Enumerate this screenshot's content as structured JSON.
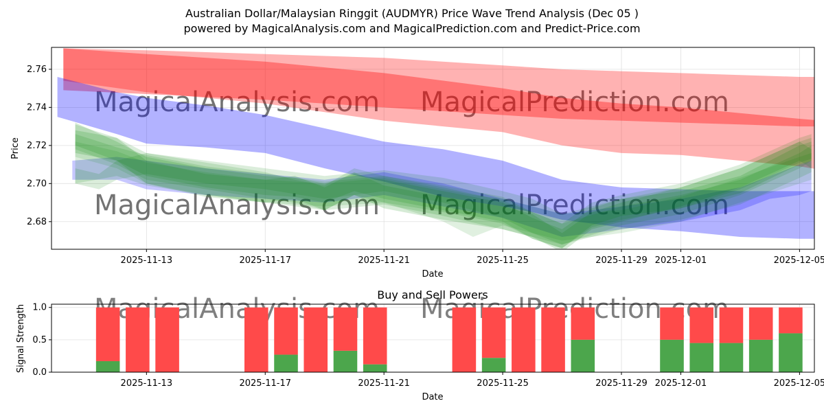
{
  "title_line1": "Australian Dollar/Malaysian Ringgit (AUDMYR) Price Wave Trend Analysis (Dec 05 )",
  "title_line2": "powered by MagicalAnalysis.com and MagicalPrediction.com and Predict-Price.com",
  "watermarks": [
    "MagicalAnalysis.com",
    "MagicalPrediction.com"
  ],
  "colors": {
    "red": "#ff0000",
    "blue": "#0000ff",
    "green": "#008000",
    "buy": "#4ca64c",
    "sell": "#ff4a4a",
    "grid": "#e0e0e0"
  },
  "chart_data": [
    {
      "type": "area",
      "title": "Australian Dollar/Malaysian Ringgit (AUDMYR) Price Wave Trend Analysis (Dec 05 )",
      "xlabel": "Date",
      "ylabel": "Price",
      "xlim_day": [
        -3.2,
        22.5
      ],
      "ylim": [
        2.6655,
        2.7715
      ],
      "x_ticks": [
        {
          "day": 0,
          "label": "2025-11-13"
        },
        {
          "day": 4,
          "label": "2025-11-17"
        },
        {
          "day": 8,
          "label": "2025-11-21"
        },
        {
          "day": 12,
          "label": "2025-11-25"
        },
        {
          "day": 16,
          "label": "2025-11-29"
        },
        {
          "day": 18,
          "label": "2025-12-01"
        },
        {
          "day": 22,
          "label": "2025-12-05"
        }
      ],
      "y_ticks": [
        2.68,
        2.7,
        2.72,
        2.74,
        2.76
      ],
      "y_tick_labels": [
        "2.68",
        "2.70",
        "2.72",
        "2.74",
        "2.76"
      ],
      "grid": true,
      "bands": [
        {
          "name": "red-wide",
          "color": "red",
          "opacity": 0.3,
          "x": [
            -2.8,
            0,
            4,
            8,
            12,
            14,
            16,
            18,
            20,
            22,
            22.8
          ],
          "upper": [
            2.771,
            2.77,
            2.768,
            2.766,
            2.762,
            2.76,
            2.759,
            2.758,
            2.757,
            2.756,
            2.756
          ],
          "lower": [
            2.754,
            2.748,
            2.742,
            2.733,
            2.727,
            2.72,
            2.716,
            2.715,
            2.712,
            2.709,
            2.707
          ]
        },
        {
          "name": "red-narrow",
          "color": "red",
          "opacity": 0.35,
          "x": [
            -2.8,
            0,
            4,
            8,
            12,
            14,
            16,
            18,
            20,
            22,
            22.8
          ],
          "upper": [
            2.771,
            2.768,
            2.764,
            2.758,
            2.75,
            2.745,
            2.742,
            2.74,
            2.737,
            2.734,
            2.733
          ],
          "lower": [
            2.749,
            2.747,
            2.744,
            2.74,
            2.736,
            2.734,
            2.733,
            2.732,
            2.731,
            2.73,
            2.73
          ]
        },
        {
          "name": "blue-wide",
          "color": "blue",
          "opacity": 0.3,
          "x": [
            -3.0,
            -1,
            0,
            2,
            4,
            6,
            8,
            10,
            12,
            13,
            14,
            16,
            18,
            20,
            22,
            22.8
          ],
          "upper": [
            2.756,
            2.748,
            2.745,
            2.741,
            2.736,
            2.729,
            2.722,
            2.718,
            2.712,
            2.707,
            2.702,
            2.698,
            2.697,
            2.696,
            2.696,
            2.696
          ],
          "lower": [
            2.735,
            2.726,
            2.721,
            2.719,
            2.716,
            2.708,
            2.701,
            2.693,
            2.688,
            2.685,
            2.681,
            2.677,
            2.675,
            2.672,
            2.671,
            2.671
          ]
        },
        {
          "name": "blue-lower",
          "color": "blue",
          "opacity": 0.22,
          "x": [
            -2.5,
            -1,
            0,
            2,
            4,
            6,
            8,
            10,
            12,
            14,
            16,
            18,
            20,
            21,
            22,
            22.4
          ],
          "upper": [
            2.712,
            2.714,
            2.712,
            2.708,
            2.705,
            2.702,
            2.706,
            2.7,
            2.692,
            2.684,
            2.688,
            2.692,
            2.698,
            2.704,
            2.71,
            2.712
          ],
          "lower": [
            2.702,
            2.702,
            2.697,
            2.694,
            2.692,
            2.69,
            2.694,
            2.688,
            2.682,
            2.672,
            2.676,
            2.68,
            2.686,
            2.692,
            2.694,
            2.696
          ]
        },
        {
          "name": "green-1",
          "color": "green",
          "opacity": 0.16,
          "x": [
            -2.4,
            -1,
            0,
            2,
            4,
            5,
            6,
            7,
            8,
            10,
            12,
            13,
            14,
            15,
            16,
            18,
            20,
            22,
            22.4
          ],
          "upper": [
            2.732,
            2.722,
            2.714,
            2.708,
            2.704,
            2.703,
            2.7,
            2.705,
            2.702,
            2.696,
            2.69,
            2.682,
            2.676,
            2.687,
            2.692,
            2.696,
            2.704,
            2.72,
            2.722
          ],
          "lower": [
            2.72,
            2.712,
            2.704,
            2.698,
            2.694,
            2.693,
            2.69,
            2.696,
            2.692,
            2.686,
            2.68,
            2.671,
            2.666,
            2.678,
            2.683,
            2.687,
            2.695,
            2.71,
            2.712
          ]
        },
        {
          "name": "green-2",
          "color": "green",
          "opacity": 0.16,
          "x": [
            -2.4,
            -1,
            0,
            2,
            4,
            5,
            6,
            7,
            8,
            10,
            12,
            13,
            14,
            15,
            16,
            18,
            20,
            22,
            22.4
          ],
          "upper": [
            2.728,
            2.724,
            2.712,
            2.705,
            2.702,
            2.704,
            2.698,
            2.706,
            2.699,
            2.693,
            2.688,
            2.684,
            2.674,
            2.685,
            2.69,
            2.698,
            2.708,
            2.722,
            2.718
          ],
          "lower": [
            2.716,
            2.712,
            2.7,
            2.693,
            2.69,
            2.692,
            2.686,
            2.694,
            2.687,
            2.681,
            2.676,
            2.672,
            2.664,
            2.676,
            2.68,
            2.688,
            2.698,
            2.712,
            2.708
          ]
        },
        {
          "name": "green-3",
          "color": "green",
          "opacity": 0.14,
          "x": [
            -2.4,
            -1,
            0,
            2,
            4,
            6,
            8,
            10,
            12,
            14,
            16,
            18,
            20,
            22,
            22.4
          ],
          "upper": [
            2.726,
            2.719,
            2.715,
            2.709,
            2.705,
            2.701,
            2.704,
            2.698,
            2.691,
            2.679,
            2.688,
            2.694,
            2.702,
            2.716,
            2.72
          ],
          "lower": [
            2.7,
            2.704,
            2.699,
            2.694,
            2.69,
            2.686,
            2.689,
            2.683,
            2.676,
            2.668,
            2.676,
            2.681,
            2.689,
            2.703,
            2.706
          ]
        },
        {
          "name": "green-4",
          "color": "green",
          "opacity": 0.14,
          "x": [
            -2.4,
            -1.6,
            -1,
            0,
            2,
            4,
            6,
            8,
            10,
            12,
            13,
            14,
            16,
            18,
            20,
            22,
            22.4
          ],
          "upper": [
            2.708,
            2.705,
            2.712,
            2.716,
            2.712,
            2.708,
            2.704,
            2.707,
            2.703,
            2.696,
            2.692,
            2.684,
            2.692,
            2.698,
            2.708,
            2.722,
            2.724
          ],
          "lower": [
            2.7,
            2.697,
            2.702,
            2.705,
            2.7,
            2.697,
            2.692,
            2.696,
            2.69,
            2.682,
            2.674,
            2.668,
            2.678,
            2.684,
            2.694,
            2.708,
            2.712
          ]
        },
        {
          "name": "green-5",
          "color": "green",
          "opacity": 0.14,
          "x": [
            -2.4,
            -1,
            0,
            2,
            4,
            5,
            6,
            7,
            8,
            10,
            12,
            13,
            14,
            15,
            16,
            18,
            20,
            22,
            22.4
          ],
          "upper": [
            2.731,
            2.724,
            2.716,
            2.711,
            2.706,
            2.702,
            2.699,
            2.708,
            2.704,
            2.699,
            2.693,
            2.685,
            2.679,
            2.69,
            2.694,
            2.7,
            2.71,
            2.724,
            2.726
          ],
          "lower": [
            2.718,
            2.71,
            2.702,
            2.697,
            2.692,
            2.69,
            2.686,
            2.694,
            2.69,
            2.685,
            2.679,
            2.671,
            2.666,
            2.677,
            2.681,
            2.687,
            2.697,
            2.711,
            2.713
          ]
        },
        {
          "name": "green-6",
          "color": "green",
          "opacity": 0.12,
          "x": [
            -2.4,
            -1,
            0,
            2,
            4,
            6,
            8,
            10,
            11,
            12,
            14,
            16,
            18,
            20,
            22,
            22.4
          ],
          "upper": [
            2.722,
            2.717,
            2.711,
            2.706,
            2.702,
            2.7,
            2.703,
            2.697,
            2.694,
            2.692,
            2.684,
            2.686,
            2.693,
            2.703,
            2.714,
            2.716
          ],
          "lower": [
            2.714,
            2.708,
            2.7,
            2.694,
            2.69,
            2.688,
            2.69,
            2.68,
            2.672,
            2.678,
            2.67,
            2.674,
            2.68,
            2.69,
            2.7,
            2.702
          ]
        }
      ]
    },
    {
      "type": "bar",
      "title": "Buy and Sell Powers",
      "xlabel": "Date",
      "ylabel": "Signal Strength",
      "xlim_day": [
        -3.2,
        22.5
      ],
      "ylim": [
        0,
        1.05
      ],
      "y_ticks": [
        0.0,
        0.5,
        1.0
      ],
      "y_tick_labels": [
        "0.0",
        "0.5",
        "1.0"
      ],
      "x_ticks": [
        {
          "day": 0,
          "label": "2025-11-13"
        },
        {
          "day": 4,
          "label": "2025-11-17"
        },
        {
          "day": 8,
          "label": "2025-11-21"
        },
        {
          "day": 12,
          "label": "2025-11-25"
        },
        {
          "day": 16,
          "label": "2025-11-29"
        },
        {
          "day": 18,
          "label": "2025-12-01"
        },
        {
          "day": 22,
          "label": "2025-12-05"
        }
      ],
      "grid": true,
      "bars": [
        {
          "day": -1.3,
          "buy": 0.17
        },
        {
          "day": -0.3,
          "buy": 0.0
        },
        {
          "day": 0.7,
          "buy": 0.0
        },
        {
          "day": 3.7,
          "buy": 0.0
        },
        {
          "day": 4.7,
          "buy": 0.27
        },
        {
          "day": 5.7,
          "buy": 0.0
        },
        {
          "day": 6.7,
          "buy": 0.33
        },
        {
          "day": 7.7,
          "buy": 0.12
        },
        {
          "day": 10.7,
          "buy": 0.0
        },
        {
          "day": 11.7,
          "buy": 0.22
        },
        {
          "day": 12.7,
          "buy": 0.0
        },
        {
          "day": 13.7,
          "buy": 0.0
        },
        {
          "day": 14.7,
          "buy": 0.5
        },
        {
          "day": 17.7,
          "buy": 0.5
        },
        {
          "day": 18.7,
          "buy": 0.45
        },
        {
          "day": 19.7,
          "buy": 0.45
        },
        {
          "day": 20.7,
          "buy": 0.5
        },
        {
          "day": 21.7,
          "buy": 0.6
        }
      ]
    }
  ]
}
